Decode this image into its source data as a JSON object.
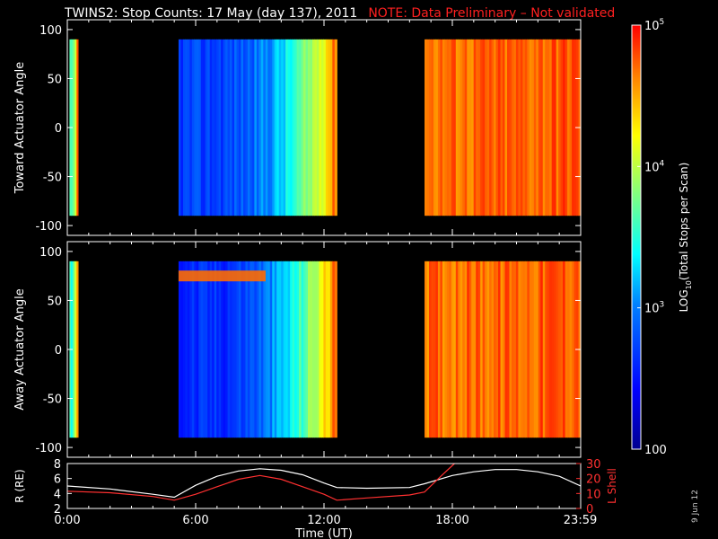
{
  "title": "TWINS2: Stop Counts: 17 May (day 137), 2011",
  "note": "NOTE: Data Preliminary – Not validated",
  "date_stamp": "9 Jun 12",
  "colors": {
    "background": "#000000",
    "foreground": "#ffffff",
    "note": "#ff2020",
    "l_shell": "#ff3030"
  },
  "chart_data": [
    {
      "id": "toward",
      "type": "heatmap",
      "ylabel": "Toward Actuator Angle",
      "ylim": [
        -110,
        110
      ],
      "yticks": [
        100,
        50,
        0,
        -50,
        -100
      ],
      "xlim": [
        0,
        24
      ],
      "data_y_range": [
        -90,
        90
      ],
      "grid": false,
      "segments": [
        {
          "t_start": 0.1,
          "t_end": 0.5,
          "log_counts_start": 3.5,
          "log_counts_end": 4.7
        },
        {
          "t_start": 5.2,
          "t_end": 12.6,
          "log_counts_start": 2.7,
          "log_counts_end": 4.7
        },
        {
          "t_start": 16.7,
          "t_end": 24.0,
          "log_counts_start": 4.7,
          "log_counts_end": 4.8
        }
      ]
    },
    {
      "id": "away",
      "type": "heatmap",
      "ylabel": "Away Actuator Angle",
      "ylim": [
        -110,
        110
      ],
      "yticks": [
        100,
        50,
        0,
        -50,
        -100
      ],
      "xlim": [
        0,
        24
      ],
      "data_y_range": [
        -90,
        90
      ],
      "grid": false,
      "segments": [
        {
          "t_start": 0.1,
          "t_end": 0.5,
          "log_counts_start": 3.5,
          "log_counts_end": 4.7
        },
        {
          "t_start": 5.2,
          "t_end": 12.6,
          "log_counts_start": 2.6,
          "log_counts_end": 4.7,
          "band_angle": 75,
          "band_log_counts": 4.7
        },
        {
          "t_start": 16.7,
          "t_end": 24.0,
          "log_counts_start": 4.7,
          "log_counts_end": 4.8
        }
      ]
    },
    {
      "id": "orbit",
      "type": "line",
      "xlabel": "Time (UT)",
      "ylabel": "R (RE)",
      "y2label": "L Shell",
      "xlim": [
        0,
        24
      ],
      "ylim": [
        2,
        8
      ],
      "y2lim": [
        0,
        30
      ],
      "xticklabels": [
        "0:00",
        "6:00",
        "12:00",
        "18:00",
        "23:59"
      ],
      "xticks": [
        0,
        6,
        12,
        18,
        23.98
      ],
      "yticks": [
        2,
        4,
        6,
        8
      ],
      "y2ticks": [
        0,
        10,
        20,
        30
      ],
      "series": [
        {
          "axis": "left",
          "color": "#ffffff",
          "x": [
            0,
            2,
            4,
            5,
            6,
            7,
            8,
            9,
            10,
            11,
            12,
            12.6,
            14,
            16,
            16.7,
            18,
            19,
            20,
            21,
            22,
            23,
            24
          ],
          "y": [
            5.0,
            4.6,
            3.9,
            3.5,
            5.1,
            6.3,
            7.0,
            7.3,
            7.1,
            6.5,
            5.4,
            4.8,
            4.7,
            4.8,
            5.3,
            6.4,
            6.9,
            7.2,
            7.2,
            6.9,
            6.3,
            5.0
          ]
        },
        {
          "axis": "right",
          "color": "#ff3030",
          "x": [
            0,
            2,
            4,
            5,
            6,
            7,
            8,
            9,
            10,
            11,
            12,
            12.6,
            14,
            16,
            16.7,
            17.5,
            18.1
          ],
          "y": [
            11.5,
            10.5,
            8.0,
            5.5,
            9.5,
            14.5,
            19.5,
            22,
            19.5,
            14.5,
            9.5,
            5.5,
            7.0,
            9.0,
            11,
            22,
            30
          ]
        }
      ]
    },
    {
      "id": "colorbar",
      "type": "heatmap",
      "label_parts": [
        "LOG",
        "10",
        "(Total Stops per Scan)"
      ],
      "range_log": [
        2,
        5
      ],
      "tick_labels": [
        {
          "log": 5,
          "base": "10",
          "exp": "5"
        },
        {
          "log": 4,
          "base": "10",
          "exp": "4"
        },
        {
          "log": 3,
          "base": "10",
          "exp": "3"
        },
        {
          "log": 2,
          "base": "100",
          "exp": ""
        }
      ]
    }
  ]
}
